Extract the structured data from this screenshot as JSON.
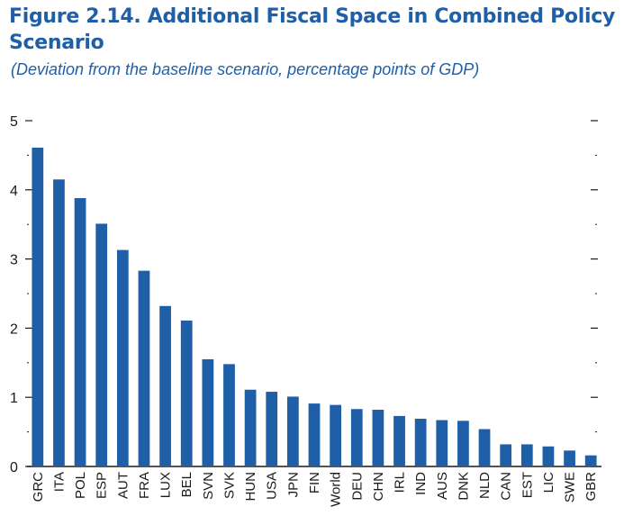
{
  "title": "Figure 2.14.  Additional Fiscal Space in Combined Policy Scenario",
  "subtitle": "(Deviation from the baseline scenario, percentage points of GDP)",
  "colors": {
    "bar": "#1f5fa8",
    "title": "#1f5fa8",
    "axis": "#1a1a1a"
  },
  "chart_data": {
    "type": "bar",
    "title": "Figure 2.14.  Additional Fiscal Space in Combined Policy Scenario",
    "subtitle": "(Deviation from the baseline scenario, percentage points of GDP)",
    "xlabel": "",
    "ylabel": "",
    "ylim": [
      0,
      5
    ],
    "yticks": [
      0,
      1,
      2,
      3,
      4,
      5
    ],
    "grid": false,
    "categories": [
      "GRC",
      "ITA",
      "POL",
      "ESP",
      "AUT",
      "FRA",
      "LUX",
      "BEL",
      "SVN",
      "SVK",
      "HUN",
      "USA",
      "JPN",
      "FIN",
      "World",
      "DEU",
      "CHN",
      "IRL",
      "IND",
      "AUS",
      "DNK",
      "NLD",
      "CAN",
      "EST",
      "LIC",
      "SWE",
      "GBR"
    ],
    "values": [
      4.61,
      4.15,
      3.88,
      3.51,
      3.13,
      2.83,
      2.32,
      2.11,
      1.55,
      1.48,
      1.11,
      1.08,
      1.01,
      0.91,
      0.89,
      0.83,
      0.82,
      0.73,
      0.69,
      0.67,
      0.66,
      0.54,
      0.32,
      0.32,
      0.29,
      0.23,
      0.16
    ]
  }
}
